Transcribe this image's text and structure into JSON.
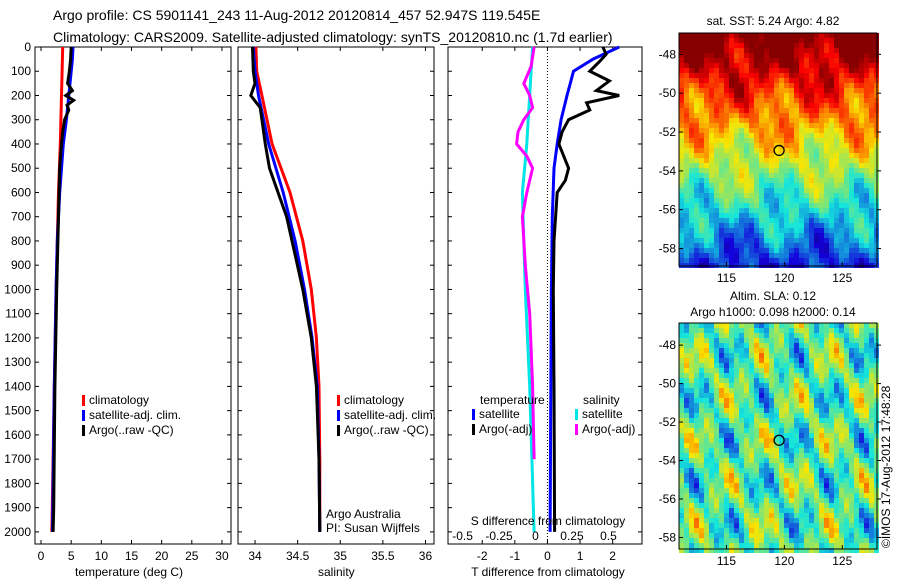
{
  "title": {
    "line1": "Argo profile: CS 5901141_243 11-Aug-2012 20120814_457 52.947S 119.545E",
    "line2": "Climatology: CARS2009. Satellite-adjusted climatology: synTS_20120810.nc (1.7d earlier)"
  },
  "colors": {
    "climatology": "#ff0000",
    "satellite": "#0000ff",
    "argo": "#000000",
    "sal_satellite": "#00e5e5",
    "sal_argo": "#ff00ff"
  },
  "chart_data": [
    {
      "type": "line",
      "xlabel": "temperature (deg C)",
      "ylabel": "",
      "xlim": [
        -1,
        31.5
      ],
      "ylim": [
        2050,
        0
      ],
      "xticks": [
        0,
        5,
        10,
        15,
        20,
        25,
        30
      ],
      "yticks": [
        0,
        100,
        200,
        300,
        400,
        500,
        600,
        700,
        800,
        900,
        1000,
        1100,
        1200,
        1300,
        1400,
        1500,
        1600,
        1700,
        1800,
        1900,
        2000
      ],
      "legend": [
        "climatology",
        "satellite-adj. clim.",
        "Argo(..raw -QC)"
      ],
      "series": [
        {
          "name": "climatology",
          "color": "#ff0000",
          "depth": [
            0,
            100,
            200,
            300,
            400,
            600,
            800,
            1000,
            1400,
            1700,
            2000
          ],
          "values": [
            3.6,
            3.5,
            3.4,
            3.3,
            3.2,
            2.9,
            2.7,
            2.5,
            2.2,
            2.0,
            1.8
          ]
        },
        {
          "name": "satellite-adj. clim.",
          "color": "#0000ff",
          "depth": [
            0,
            50,
            100,
            200,
            300,
            400,
            600,
            800,
            1000,
            1400,
            2000
          ],
          "values": [
            5.3,
            5.2,
            5.0,
            4.6,
            4.2,
            3.7,
            3.1,
            2.7,
            2.5,
            2.2,
            1.9
          ]
        },
        {
          "name": "Argo(..raw -QC)",
          "color": "#000000",
          "depth": [
            0,
            50,
            100,
            150,
            180,
            200,
            220,
            240,
            260,
            300,
            350,
            400,
            500,
            700,
            1000,
            1400,
            1900,
            2000
          ],
          "values": [
            5.0,
            4.9,
            4.7,
            4.4,
            5.2,
            4.1,
            5.4,
            4.3,
            4.6,
            3.9,
            3.6,
            3.4,
            3.1,
            2.9,
            2.6,
            2.3,
            2.1,
            2.0
          ]
        }
      ],
      "annotations": []
    },
    {
      "type": "line",
      "xlabel": "salinity",
      "xlim": [
        33.8,
        36.1
      ],
      "ylim": [
        2050,
        0
      ],
      "xticks": [
        34,
        34.5,
        35,
        35.5,
        36
      ],
      "legend": [
        "climatology",
        "satellite-adj. clim.",
        "Argo(..raw -QC)"
      ],
      "series": [
        {
          "name": "climatology",
          "color": "#ff0000",
          "depth": [
            0,
            100,
            200,
            300,
            400,
            600,
            800,
            1000,
            1200,
            1400,
            1700,
            2000
          ],
          "values": [
            34.01,
            34.02,
            34.08,
            34.14,
            34.2,
            34.41,
            34.56,
            34.66,
            34.72,
            34.75,
            34.76,
            34.76
          ]
        },
        {
          "name": "satellite-adj. clim.",
          "color": "#0000ff",
          "depth": [
            0,
            100,
            200,
            300,
            400,
            600,
            800,
            1000,
            1200,
            1400,
            1700,
            2000
          ],
          "values": [
            33.98,
            34.0,
            34.04,
            34.1,
            34.16,
            34.33,
            34.47,
            34.58,
            34.67,
            34.73,
            34.75,
            34.76
          ]
        },
        {
          "name": "Argo(..raw -QC)",
          "color": "#000000",
          "depth": [
            0,
            100,
            150,
            200,
            250,
            300,
            400,
            500,
            700,
            1000,
            1200,
            1400,
            1700,
            2000
          ],
          "values": [
            33.97,
            33.98,
            34.0,
            33.95,
            34.06,
            34.08,
            34.12,
            34.17,
            34.37,
            34.56,
            34.66,
            34.72,
            34.75,
            34.76
          ]
        }
      ],
      "annotations": [
        "Argo Australia",
        "PI: Susan Wijffels"
      ]
    },
    {
      "type": "line",
      "xlabel": "T difference from climatology",
      "xlabel2": "S difference from climatology",
      "xlim": [
        -3.05,
        2.9
      ],
      "xlim_s": [
        -0.6,
        0.73
      ],
      "ylim": [
        2050,
        0
      ],
      "xticks": [
        -2,
        -1,
        0,
        1,
        2
      ],
      "xticks_s": [
        -0.5,
        -0.25,
        0,
        0.25,
        0.5
      ],
      "xticklabels_s": [
        "-0.5",
        "-0.25",
        "0",
        "0.25",
        "0.5"
      ],
      "legend_titles": [
        "temperature",
        "salinity"
      ],
      "legend": [
        "satellite",
        "Argo(-adj)",
        "satellite",
        "Argo(-adj)"
      ],
      "series": [
        {
          "name": "T satellite",
          "color": "#0000ff",
          "axis": "T",
          "depth": [
            0,
            50,
            100,
            150,
            200,
            300,
            400,
            500,
            700,
            1000,
            1500,
            2000
          ],
          "values": [
            2.2,
            1.4,
            0.8,
            0.7,
            0.6,
            0.42,
            0.3,
            0.2,
            0.15,
            0.12,
            0.1,
            0.08
          ]
        },
        {
          "name": "T Argo(-adj)",
          "color": "#000000",
          "axis": "T",
          "depth": [
            0,
            30,
            60,
            100,
            140,
            180,
            200,
            230,
            260,
            300,
            350,
            400,
            450,
            500,
            550,
            600,
            700,
            800,
            1000,
            1400,
            2000
          ],
          "values": [
            1.7,
            1.8,
            1.6,
            1.3,
            1.9,
            1.5,
            2.2,
            1.2,
            1.3,
            0.65,
            0.45,
            0.35,
            0.5,
            0.65,
            0.55,
            0.3,
            0.25,
            0.2,
            0.18,
            0.2,
            0.22
          ]
        },
        {
          "name": "S satellite",
          "color": "#00e5e5",
          "axis": "S",
          "depth": [
            0,
            100,
            200,
            300,
            400,
            600,
            800,
            1000,
            1400,
            2000
          ],
          "values": [
            -0.02,
            -0.03,
            -0.04,
            -0.05,
            -0.06,
            -0.09,
            -0.08,
            -0.07,
            -0.04,
            -0.01
          ]
        },
        {
          "name": "S Argo(-adj)",
          "color": "#ff00ff",
          "axis": "S",
          "depth": [
            0,
            80,
            150,
            200,
            250,
            300,
            350,
            400,
            450,
            500,
            600,
            700,
            900,
            1100,
            1400,
            1700
          ],
          "values": [
            -0.01,
            -0.03,
            -0.08,
            -0.04,
            -0.02,
            -0.08,
            -0.12,
            -0.13,
            -0.06,
            -0.02,
            -0.06,
            -0.09,
            -0.07,
            -0.04,
            -0.02,
            -0.01
          ]
        }
      ]
    },
    {
      "type": "heatmap",
      "title": "sat. SST: 5.24 Argo: 4.82",
      "xlim": [
        110.9,
        128
      ],
      "ylim": [
        -58.9,
        -46.9
      ],
      "xticks": [
        115,
        120,
        125
      ],
      "yticks": [
        -48,
        -50,
        -52,
        -54,
        -56,
        -58
      ],
      "marker": {
        "lon": 119.545,
        "lat": -52.947
      }
    },
    {
      "type": "heatmap",
      "title": "Altim. SLA: 0.12",
      "subtitle": "Argo h1000: 0.098 h2000: 0.14",
      "xlim": [
        110.9,
        128
      ],
      "ylim": [
        -58.6,
        -46.85
      ],
      "xticks": [
        115,
        120,
        125
      ],
      "yticks": [
        -48,
        -50,
        -52,
        -54,
        -56,
        -58
      ],
      "marker": {
        "lon": 119.545,
        "lat": -52.947
      }
    }
  ],
  "credit": "©IMOS 17-Aug-2012 17:48:28"
}
